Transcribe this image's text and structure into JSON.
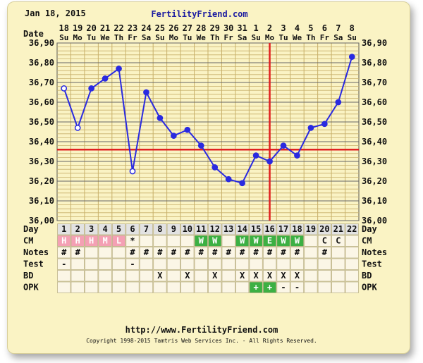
{
  "header": {
    "date": "Jan 18, 2015",
    "site": "FertilityFriend.com"
  },
  "footer": {
    "url": "http://www.FertilityFriend.com",
    "copyright": "Copyright 1998-2015 Tamtris Web Services Inc. - All Rights Reserved."
  },
  "colors": {
    "background": "#faf3c4",
    "temp_line": "#2a2ae0",
    "coverline": "#e02020",
    "ovulation_line": "#e02020",
    "grid": "#c8b06a",
    "menses_cell": "#f4a0b4",
    "fertile_cell": "#3cb043"
  },
  "chart_data": {
    "type": "line",
    "labels": {
      "date_row": "Date",
      "day_row": "Day",
      "rows": [
        "CM",
        "Notes",
        "Test",
        "BD",
        "OPK"
      ]
    },
    "dates": [
      "18",
      "19",
      "20",
      "21",
      "22",
      "23",
      "24",
      "25",
      "26",
      "27",
      "28",
      "29",
      "30",
      "31",
      "1",
      "2",
      "3",
      "4",
      "5",
      "6",
      "7",
      "8"
    ],
    "weekdays": [
      "Su",
      "Mo",
      "Tu",
      "We",
      "Th",
      "Fr",
      "Sa",
      "Su",
      "Mo",
      "Tu",
      "We",
      "Th",
      "Fr",
      "Sa",
      "Su",
      "Mo",
      "Tu",
      "We",
      "Th",
      "Fr",
      "Sa",
      "Su"
    ],
    "cycle_days": [
      "1",
      "2",
      "3",
      "4",
      "5",
      "6",
      "7",
      "8",
      "9",
      "10",
      "11",
      "12",
      "13",
      "14",
      "15",
      "16",
      "17",
      "18",
      "19",
      "20",
      "21",
      "22"
    ],
    "y_ticks": [
      "36,00",
      "36,10",
      "36,20",
      "36,30",
      "36,40",
      "36,50",
      "36,60",
      "36,70",
      "36,80",
      "36,90"
    ],
    "ylim": [
      36.0,
      36.9
    ],
    "coverline": 36.36,
    "ovulation_day": 16,
    "series": [
      {
        "values": [
          36.67,
          36.47,
          36.67,
          36.72,
          36.77,
          36.25,
          36.65,
          36.52,
          36.43,
          36.46,
          36.38,
          36.27,
          36.21,
          36.19,
          36.33,
          36.3,
          36.38,
          36.33,
          36.47,
          36.49,
          36.6,
          36.83
        ],
        "open_points": [
          1,
          2,
          6
        ]
      }
    ],
    "cm": [
      "H",
      "H",
      "H",
      "M",
      "L",
      "*",
      "",
      "",
      "",
      "",
      "W",
      "W",
      "",
      "W",
      "W",
      "E",
      "W",
      "W",
      "",
      "C",
      "C",
      ""
    ],
    "cm_colors": [
      "menses",
      "menses",
      "menses",
      "menses",
      "menses",
      "",
      "",
      "",
      "",
      "",
      "fertile",
      "fertile",
      "",
      "fertile",
      "fertile",
      "fertile",
      "fertile",
      "fertile",
      "",
      "",
      "",
      ""
    ],
    "notes": [
      "#",
      "#",
      "",
      "",
      "",
      "#",
      "#",
      "#",
      "#",
      "#",
      "#",
      "#",
      "#",
      "#",
      "#",
      "#",
      "#",
      "#",
      "",
      "#",
      "",
      ""
    ],
    "test": [
      "-",
      "",
      "",
      "",
      "",
      "-",
      "",
      "",
      "",
      "",
      "",
      "",
      "",
      "",
      "",
      "",
      "",
      "",
      "",
      "",
      "",
      ""
    ],
    "bd": [
      "",
      "",
      "",
      "",
      "",
      "",
      "",
      "X",
      "",
      "X",
      "",
      "X",
      "",
      "X",
      "X",
      "X",
      "X",
      "X",
      "",
      "",
      "",
      ""
    ],
    "opk": [
      "",
      "",
      "",
      "",
      "",
      "",
      "",
      "",
      "",
      "",
      "",
      "",
      "",
      "",
      "+",
      "+",
      "-",
      "-",
      "",
      "",
      "",
      ""
    ],
    "opk_positive": [
      15,
      16
    ]
  }
}
